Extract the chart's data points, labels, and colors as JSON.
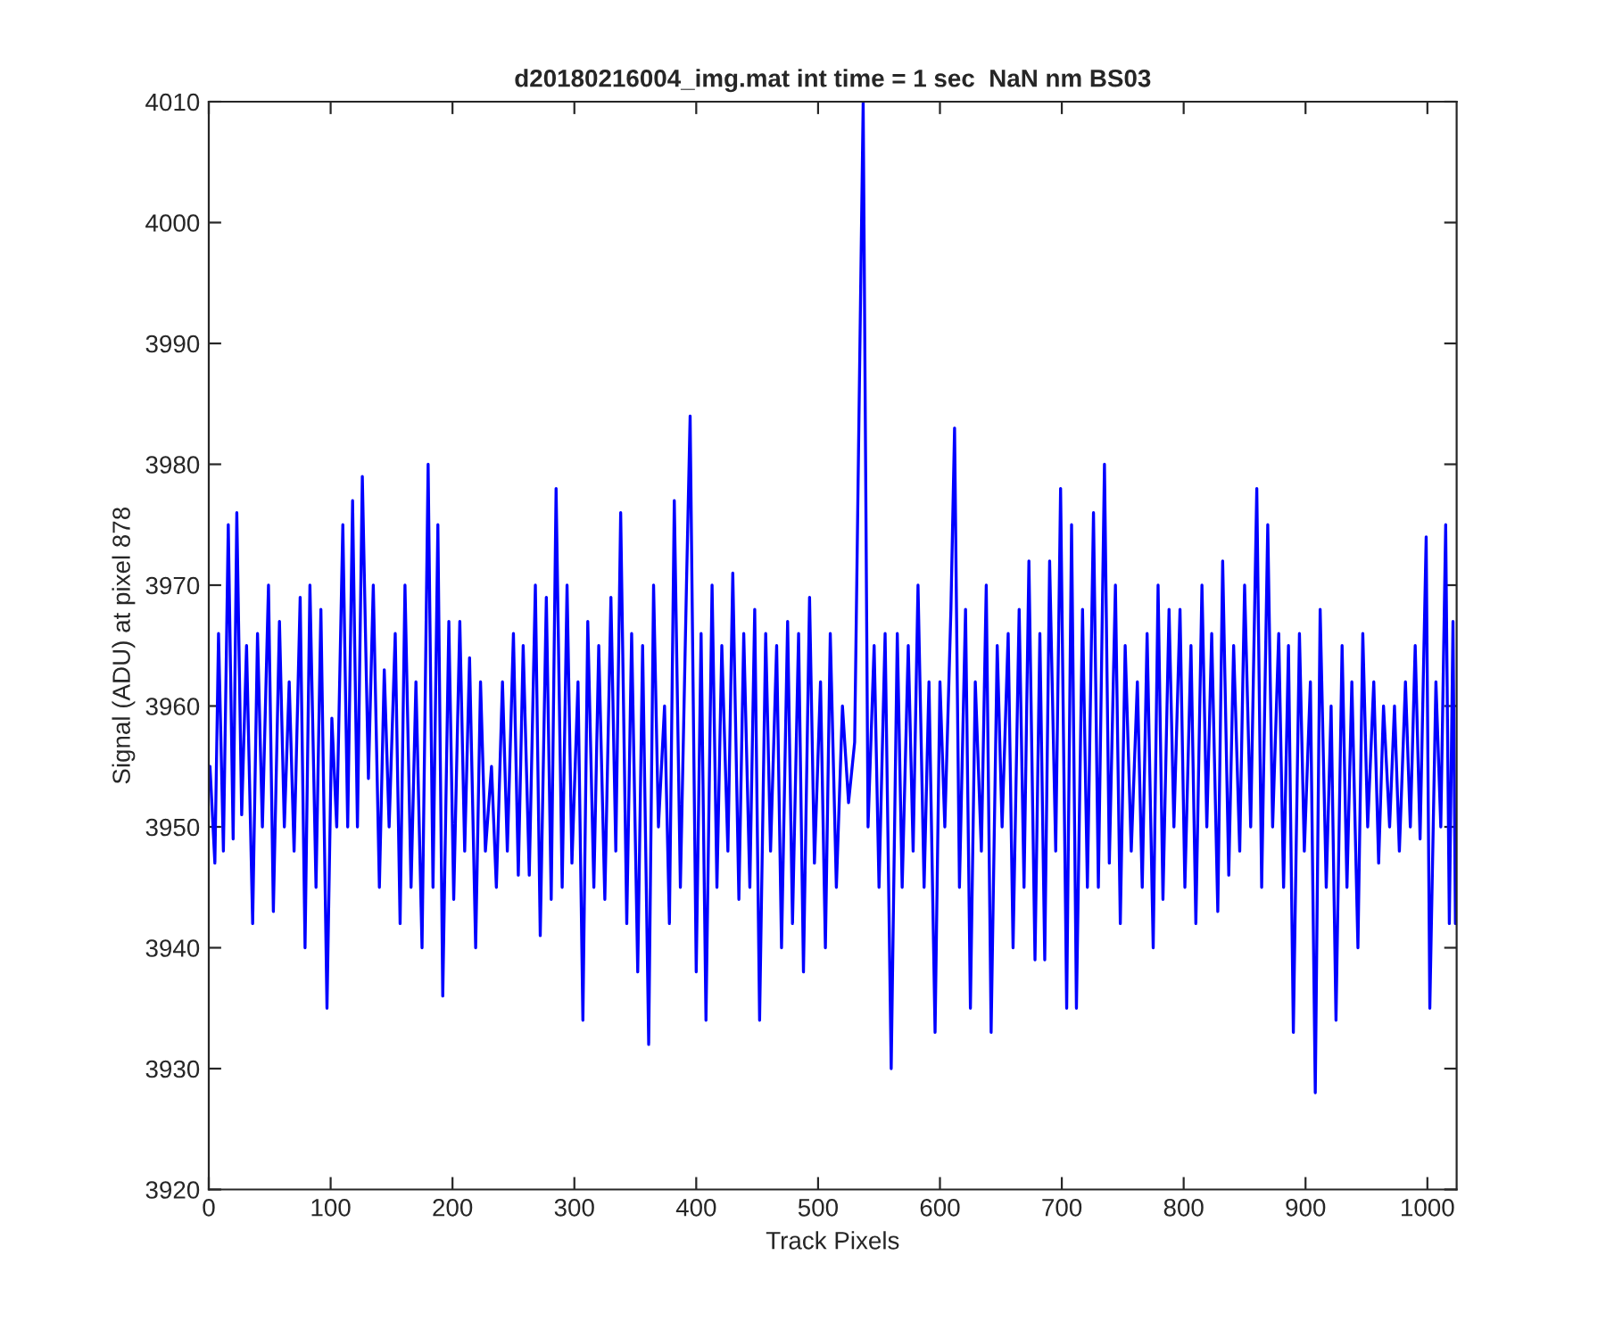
{
  "chart_data": {
    "type": "line",
    "title": "d20180216004_img.mat int time = 1 sec  NaN nm BS03",
    "xlabel": "Track Pixels",
    "ylabel": "Signal (ADU) at pixel 878",
    "xlim": [
      0,
      1024
    ],
    "xticks": [
      0,
      100,
      200,
      300,
      400,
      500,
      600,
      700,
      800,
      900,
      1000
    ],
    "ylim": [
      3920,
      4010
    ],
    "yticks": [
      3920,
      3930,
      3940,
      3950,
      3960,
      3970,
      3980,
      3990,
      4000,
      4010
    ],
    "grid": false,
    "legend": false,
    "marker": "none",
    "line_style": "solid",
    "series": [
      {
        "color": "#0000ff",
        "x": [
          1,
          5,
          8,
          12,
          16,
          20,
          23,
          27,
          31,
          36,
          40,
          44,
          49,
          53,
          58,
          62,
          66,
          70,
          75,
          79,
          83,
          88,
          92,
          97,
          101,
          105,
          110,
          114,
          118,
          122,
          126,
          131,
          135,
          140,
          144,
          148,
          153,
          157,
          161,
          166,
          170,
          175,
          180,
          184,
          188,
          192,
          197,
          201,
          206,
          210,
          214,
          219,
          223,
          227,
          232,
          236,
          241,
          245,
          250,
          254,
          258,
          263,
          268,
          272,
          277,
          281,
          285,
          290,
          294,
          298,
          303,
          307,
          311,
          316,
          320,
          325,
          330,
          334,
          338,
          343,
          347,
          352,
          356,
          361,
          365,
          369,
          374,
          378,
          382,
          387,
          392,
          395,
          400,
          404,
          408,
          413,
          417,
          421,
          426,
          430,
          435,
          439,
          444,
          448,
          452,
          457,
          461,
          466,
          470,
          475,
          479,
          484,
          488,
          493,
          497,
          502,
          506,
          510,
          515,
          520,
          525,
          530,
          537,
          541,
          546,
          550,
          555,
          560,
          565,
          569,
          574,
          578,
          582,
          587,
          591,
          596,
          600,
          604,
          609,
          612,
          616,
          621,
          625,
          629,
          634,
          638,
          642,
          647,
          651,
          656,
          660,
          665,
          669,
          673,
          678,
          682,
          686,
          690,
          695,
          699,
          704,
          708,
          712,
          717,
          721,
          726,
          730,
          735,
          739,
          744,
          748,
          752,
          757,
          762,
          766,
          770,
          775,
          779,
          783,
          788,
          792,
          797,
          801,
          806,
          810,
          815,
          819,
          823,
          828,
          832,
          837,
          841,
          846,
          850,
          855,
          860,
          864,
          869,
          873,
          878,
          882,
          886,
          890,
          895,
          899,
          904,
          908,
          912,
          917,
          921,
          925,
          930,
          934,
          938,
          943,
          947,
          951,
          956,
          960,
          964,
          969,
          973,
          977,
          982,
          986,
          990,
          994,
          999,
          1002,
          1007,
          1011,
          1015,
          1018,
          1021,
          1023
        ],
        "values": [
          3955,
          3947,
          3966,
          3948,
          3975,
          3949,
          3976,
          3951,
          3965,
          3942,
          3966,
          3950,
          3970,
          3943,
          3967,
          3950,
          3962,
          3948,
          3969,
          3940,
          3970,
          3945,
          3968,
          3935,
          3959,
          3950,
          3975,
          3950,
          3977,
          3950,
          3979,
          3954,
          3970,
          3945,
          3963,
          3950,
          3966,
          3942,
          3970,
          3945,
          3962,
          3940,
          3980,
          3945,
          3975,
          3936,
          3967,
          3944,
          3967,
          3948,
          3964,
          3940,
          3962,
          3948,
          3955,
          3945,
          3962,
          3948,
          3966,
          3946,
          3965,
          3946,
          3970,
          3941,
          3969,
          3944,
          3978,
          3945,
          3970,
          3947,
          3962,
          3934,
          3967,
          3945,
          3965,
          3944,
          3969,
          3948,
          3976,
          3942,
          3966,
          3938,
          3965,
          3932,
          3970,
          3950,
          3960,
          3942,
          3977,
          3945,
          3970,
          3984,
          3938,
          3966,
          3934,
          3970,
          3945,
          3965,
          3948,
          3971,
          3944,
          3966,
          3945,
          3968,
          3934,
          3966,
          3948,
          3965,
          3940,
          3967,
          3942,
          3966,
          3938,
          3969,
          3947,
          3962,
          3940,
          3966,
          3945,
          3960,
          3952,
          3957,
          4010,
          3950,
          3965,
          3945,
          3966,
          3930,
          3966,
          3945,
          3965,
          3948,
          3970,
          3945,
          3962,
          3933,
          3962,
          3950,
          3968,
          3983,
          3945,
          3968,
          3935,
          3962,
          3948,
          3970,
          3933,
          3965,
          3950,
          3966,
          3940,
          3968,
          3945,
          3972,
          3939,
          3966,
          3939,
          3972,
          3948,
          3978,
          3935,
          3975,
          3935,
          3968,
          3945,
          3976,
          3945,
          3980,
          3947,
          3970,
          3942,
          3965,
          3948,
          3962,
          3945,
          3966,
          3940,
          3970,
          3944,
          3968,
          3950,
          3968,
          3945,
          3965,
          3942,
          3970,
          3950,
          3966,
          3943,
          3972,
          3946,
          3965,
          3948,
          3970,
          3950,
          3978,
          3945,
          3975,
          3950,
          3966,
          3945,
          3965,
          3933,
          3966,
          3948,
          3962,
          3928,
          3968,
          3945,
          3960,
          3934,
          3965,
          3945,
          3962,
          3940,
          3966,
          3950,
          3962,
          3947,
          3960,
          3950,
          3960,
          3948,
          3962,
          3950,
          3965,
          3949,
          3974,
          3935,
          3962,
          3950,
          3975,
          3942,
          3967,
          3942
        ]
      }
    ]
  }
}
